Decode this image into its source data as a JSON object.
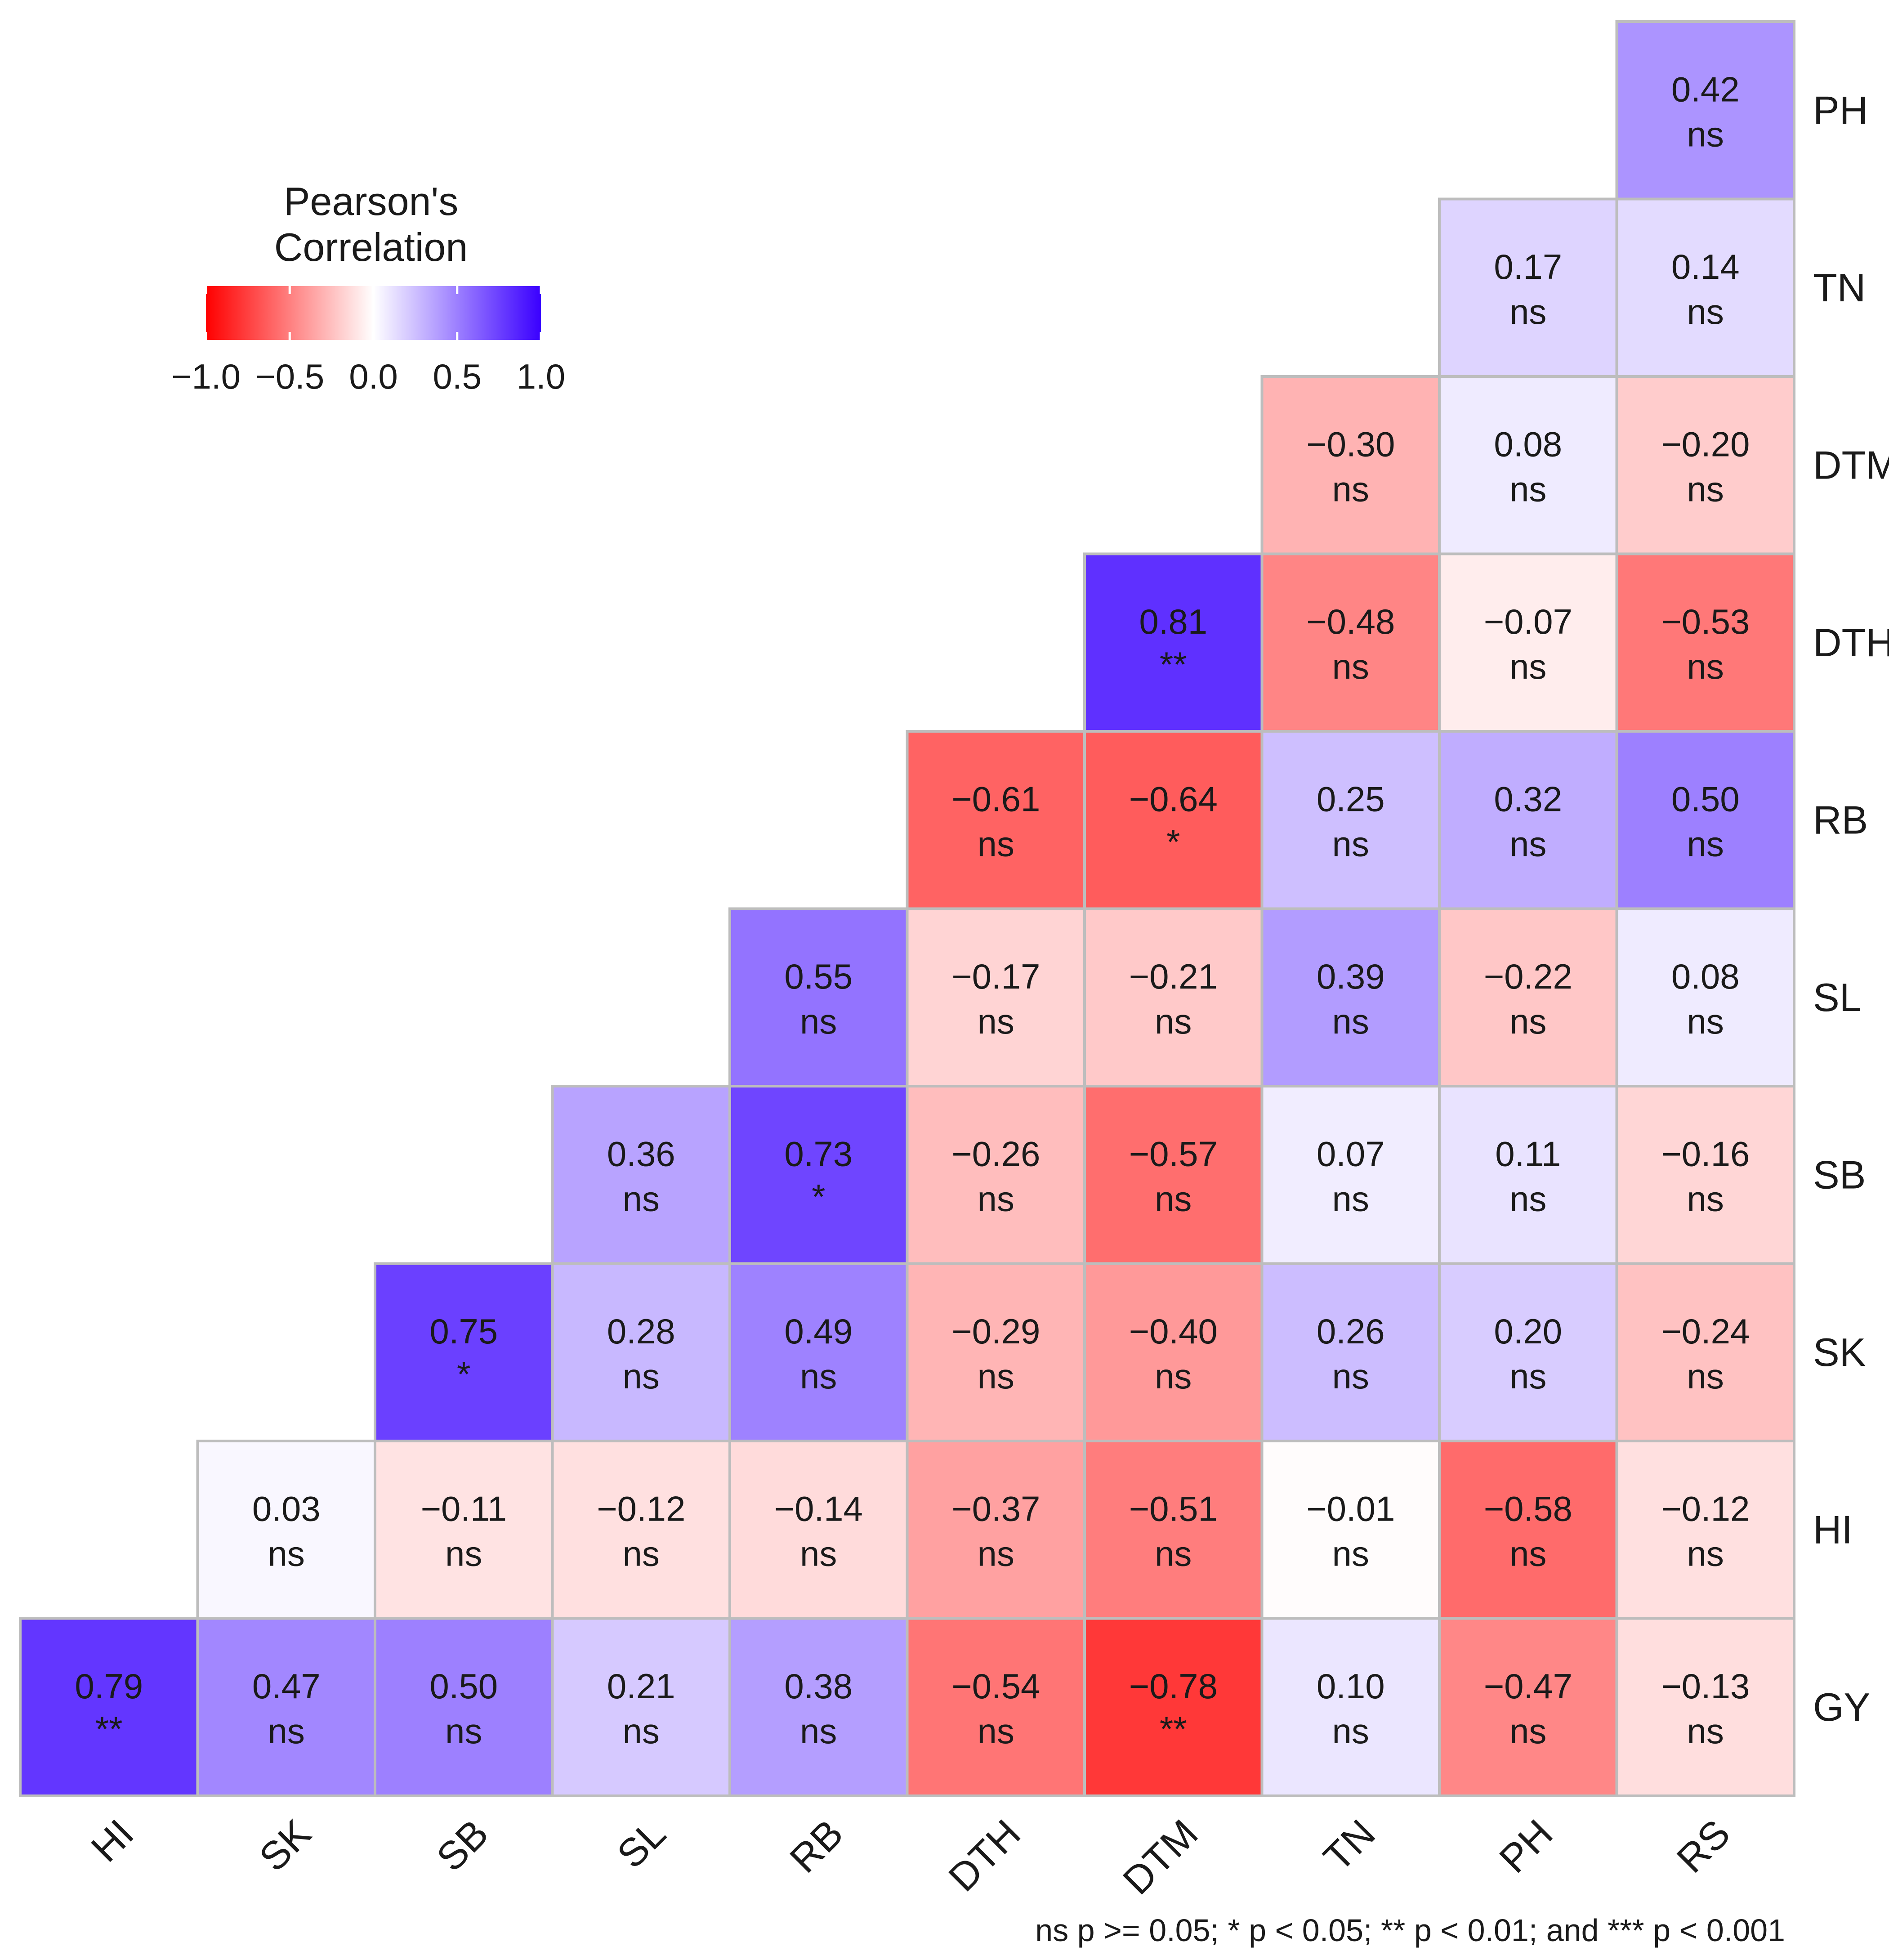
{
  "chart_data": {
    "type": "heatmap",
    "legend_title_line1": "Pearson's",
    "legend_title_line2": "Correlation",
    "legend_ticks": [
      "−1.0",
      "−0.5",
      "0.0",
      "0.5",
      "1.0"
    ],
    "legend_range": [
      -1,
      1
    ],
    "legend_placement": "top-left",
    "colors": {
      "low": "#FF0000",
      "mid": "#FFFFFF",
      "high": "#3A00FF",
      "border": "#BDBDBD"
    },
    "x_labels": [
      "HI",
      "SK",
      "SB",
      "SL",
      "RB",
      "DTH",
      "DTM",
      "TN",
      "PH",
      "RS"
    ],
    "y_labels": [
      "PH",
      "TN",
      "DTM",
      "DTH",
      "RB",
      "SL",
      "SB",
      "SK",
      "HI",
      "GY"
    ],
    "cells": [
      {
        "row": "PH",
        "col": "RS",
        "r": 0.42,
        "label": "0.42",
        "sig": "ns"
      },
      {
        "row": "TN",
        "col": "PH",
        "r": 0.17,
        "label": "0.17",
        "sig": "ns"
      },
      {
        "row": "TN",
        "col": "RS",
        "r": 0.14,
        "label": "0.14",
        "sig": "ns"
      },
      {
        "row": "DTM",
        "col": "TN",
        "r": -0.3,
        "label": "−0.30",
        "sig": "ns"
      },
      {
        "row": "DTM",
        "col": "PH",
        "r": 0.08,
        "label": "0.08",
        "sig": "ns"
      },
      {
        "row": "DTM",
        "col": "RS",
        "r": -0.2,
        "label": "−0.20",
        "sig": "ns"
      },
      {
        "row": "DTH",
        "col": "DTM",
        "r": 0.81,
        "label": "0.81",
        "sig": "**"
      },
      {
        "row": "DTH",
        "col": "TN",
        "r": -0.48,
        "label": "−0.48",
        "sig": "ns"
      },
      {
        "row": "DTH",
        "col": "PH",
        "r": -0.07,
        "label": "−0.07",
        "sig": "ns"
      },
      {
        "row": "DTH",
        "col": "RS",
        "r": -0.53,
        "label": "−0.53",
        "sig": "ns"
      },
      {
        "row": "RB",
        "col": "DTH",
        "r": -0.61,
        "label": "−0.61",
        "sig": "ns"
      },
      {
        "row": "RB",
        "col": "DTM",
        "r": -0.64,
        "label": "−0.64",
        "sig": "*"
      },
      {
        "row": "RB",
        "col": "TN",
        "r": 0.25,
        "label": "0.25",
        "sig": "ns"
      },
      {
        "row": "RB",
        "col": "PH",
        "r": 0.32,
        "label": "0.32",
        "sig": "ns"
      },
      {
        "row": "RB",
        "col": "RS",
        "r": 0.5,
        "label": "0.50",
        "sig": "ns"
      },
      {
        "row": "SL",
        "col": "RB",
        "r": 0.55,
        "label": "0.55",
        "sig": "ns"
      },
      {
        "row": "SL",
        "col": "DTH",
        "r": -0.17,
        "label": "−0.17",
        "sig": "ns"
      },
      {
        "row": "SL",
        "col": "DTM",
        "r": -0.21,
        "label": "−0.21",
        "sig": "ns"
      },
      {
        "row": "SL",
        "col": "TN",
        "r": 0.39,
        "label": "0.39",
        "sig": "ns"
      },
      {
        "row": "SL",
        "col": "PH",
        "r": -0.22,
        "label": "−0.22",
        "sig": "ns"
      },
      {
        "row": "SL",
        "col": "RS",
        "r": 0.08,
        "label": "0.08",
        "sig": "ns"
      },
      {
        "row": "SB",
        "col": "SL",
        "r": 0.36,
        "label": "0.36",
        "sig": "ns"
      },
      {
        "row": "SB",
        "col": "RB",
        "r": 0.73,
        "label": "0.73",
        "sig": "*"
      },
      {
        "row": "SB",
        "col": "DTH",
        "r": -0.26,
        "label": "−0.26",
        "sig": "ns"
      },
      {
        "row": "SB",
        "col": "DTM",
        "r": -0.57,
        "label": "−0.57",
        "sig": "ns"
      },
      {
        "row": "SB",
        "col": "TN",
        "r": 0.07,
        "label": "0.07",
        "sig": "ns"
      },
      {
        "row": "SB",
        "col": "PH",
        "r": 0.11,
        "label": "0.11",
        "sig": "ns"
      },
      {
        "row": "SB",
        "col": "RS",
        "r": -0.16,
        "label": "−0.16",
        "sig": "ns"
      },
      {
        "row": "SK",
        "col": "SB",
        "r": 0.75,
        "label": "0.75",
        "sig": "*"
      },
      {
        "row": "SK",
        "col": "SL",
        "r": 0.28,
        "label": "0.28",
        "sig": "ns"
      },
      {
        "row": "SK",
        "col": "RB",
        "r": 0.49,
        "label": "0.49",
        "sig": "ns"
      },
      {
        "row": "SK",
        "col": "DTH",
        "r": -0.29,
        "label": "−0.29",
        "sig": "ns"
      },
      {
        "row": "SK",
        "col": "DTM",
        "r": -0.4,
        "label": "−0.40",
        "sig": "ns"
      },
      {
        "row": "SK",
        "col": "TN",
        "r": 0.26,
        "label": "0.26",
        "sig": "ns"
      },
      {
        "row": "SK",
        "col": "PH",
        "r": 0.2,
        "label": "0.20",
        "sig": "ns"
      },
      {
        "row": "SK",
        "col": "RS",
        "r": -0.24,
        "label": "−0.24",
        "sig": "ns"
      },
      {
        "row": "HI",
        "col": "SK",
        "r": 0.03,
        "label": "0.03",
        "sig": "ns"
      },
      {
        "row": "HI",
        "col": "SB",
        "r": -0.11,
        "label": "−0.11",
        "sig": "ns"
      },
      {
        "row": "HI",
        "col": "SL",
        "r": -0.12,
        "label": "−0.12",
        "sig": "ns"
      },
      {
        "row": "HI",
        "col": "RB",
        "r": -0.14,
        "label": "−0.14",
        "sig": "ns"
      },
      {
        "row": "HI",
        "col": "DTH",
        "r": -0.37,
        "label": "−0.37",
        "sig": "ns"
      },
      {
        "row": "HI",
        "col": "DTM",
        "r": -0.51,
        "label": "−0.51",
        "sig": "ns"
      },
      {
        "row": "HI",
        "col": "TN",
        "r": -0.01,
        "label": "−0.01",
        "sig": "ns"
      },
      {
        "row": "HI",
        "col": "PH",
        "r": -0.58,
        "label": "−0.58",
        "sig": "ns"
      },
      {
        "row": "HI",
        "col": "RS",
        "r": -0.12,
        "label": "−0.12",
        "sig": "ns"
      },
      {
        "row": "GY",
        "col": "HI",
        "r": 0.79,
        "label": "0.79",
        "sig": "**"
      },
      {
        "row": "GY",
        "col": "SK",
        "r": 0.47,
        "label": "0.47",
        "sig": "ns"
      },
      {
        "row": "GY",
        "col": "SB",
        "r": 0.5,
        "label": "0.50",
        "sig": "ns"
      },
      {
        "row": "GY",
        "col": "SL",
        "r": 0.21,
        "label": "0.21",
        "sig": "ns"
      },
      {
        "row": "GY",
        "col": "RB",
        "r": 0.38,
        "label": "0.38",
        "sig": "ns"
      },
      {
        "row": "GY",
        "col": "DTH",
        "r": -0.54,
        "label": "−0.54",
        "sig": "ns"
      },
      {
        "row": "GY",
        "col": "DTM",
        "r": -0.78,
        "label": "−0.78",
        "sig": "**"
      },
      {
        "row": "GY",
        "col": "TN",
        "r": 0.1,
        "label": "0.10",
        "sig": "ns"
      },
      {
        "row": "GY",
        "col": "PH",
        "r": -0.47,
        "label": "−0.47",
        "sig": "ns"
      },
      {
        "row": "GY",
        "col": "RS",
        "r": -0.13,
        "label": "−0.13",
        "sig": "ns"
      }
    ],
    "footnote": "ns p >= 0.05; * p < 0.05; ** p < 0.01; and *** p < 0.001"
  }
}
